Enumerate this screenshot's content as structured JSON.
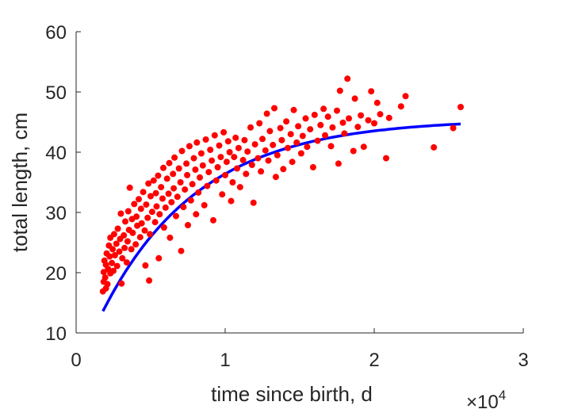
{
  "chart_data": {
    "type": "scatter",
    "xlabel": "time since birth, d",
    "ylabel": "total length, cm",
    "x_multiplier": {
      "base": "×10",
      "exponent": "4"
    },
    "xlim": [
      0,
      30000
    ],
    "ylim": [
      10,
      60
    ],
    "x_ticks": [
      {
        "value": 0,
        "label": "0"
      },
      {
        "value": 10000,
        "label": "1"
      },
      {
        "value": 20000,
        "label": "2"
      },
      {
        "value": 30000,
        "label": "3"
      }
    ],
    "y_ticks": [
      {
        "value": 10,
        "label": "10"
      },
      {
        "value": 20,
        "label": "20"
      },
      {
        "value": 30,
        "label": "30"
      },
      {
        "value": 40,
        "label": "40"
      },
      {
        "value": 50,
        "label": "50"
      },
      {
        "value": 60,
        "label": "60"
      }
    ],
    "grid": false,
    "series": [
      {
        "kind": "points",
        "color": "#ff0000",
        "points": [
          [
            1800,
            16.9
          ],
          [
            1850,
            18.5
          ],
          [
            1850,
            20.1
          ],
          [
            1900,
            22.0
          ],
          [
            1950,
            19.2
          ],
          [
            2000,
            21.3
          ],
          [
            2000,
            17.4
          ],
          [
            2050,
            23.2
          ],
          [
            2100,
            18.1
          ],
          [
            2150,
            20.6
          ],
          [
            2200,
            24.5
          ],
          [
            2250,
            22.7
          ],
          [
            2300,
            19.9
          ],
          [
            2300,
            25.8
          ],
          [
            2400,
            21.6
          ],
          [
            2450,
            23.9
          ],
          [
            2500,
            20.3
          ],
          [
            2550,
            26.4
          ],
          [
            2600,
            22.9
          ],
          [
            2700,
            24.8
          ],
          [
            2750,
            21.1
          ],
          [
            2800,
            27.3
          ],
          [
            2900,
            23.5
          ],
          [
            2950,
            25.6
          ],
          [
            3000,
            29.8
          ],
          [
            3050,
            18.2
          ],
          [
            3100,
            22.4
          ],
          [
            3200,
            26.2
          ],
          [
            3250,
            24.1
          ],
          [
            3300,
            28.5
          ],
          [
            3400,
            21.7
          ],
          [
            3450,
            25.2
          ],
          [
            3500,
            30.2
          ],
          [
            3550,
            27.1
          ],
          [
            3600,
            34.1
          ],
          [
            3700,
            23.9
          ],
          [
            3750,
            28.9
          ],
          [
            3800,
            26.6
          ],
          [
            3900,
            31.4
          ],
          [
            4000,
            24.7
          ],
          [
            4050,
            29.3
          ],
          [
            4100,
            27.8
          ],
          [
            4200,
            32.2
          ],
          [
            4300,
            25.9
          ],
          [
            4350,
            30.6
          ],
          [
            4400,
            28.2
          ],
          [
            4500,
            33.4
          ],
          [
            4600,
            27.0
          ],
          [
            4650,
            21.2
          ],
          [
            4700,
            31.3
          ],
          [
            4800,
            29.1
          ],
          [
            4850,
            34.8
          ],
          [
            4900,
            18.7
          ],
          [
            4950,
            26.4
          ],
          [
            5000,
            32.7
          ],
          [
            5100,
            30.1
          ],
          [
            5200,
            35.3
          ],
          [
            5300,
            28.4
          ],
          [
            5350,
            33.2
          ],
          [
            5400,
            31.0
          ],
          [
            5500,
            36.1
          ],
          [
            5550,
            22.4
          ],
          [
            5600,
            29.7
          ],
          [
            5700,
            34.2
          ],
          [
            5800,
            32.3
          ],
          [
            5850,
            37.4
          ],
          [
            5900,
            27.5
          ],
          [
            6000,
            30.8
          ],
          [
            6100,
            35.6
          ],
          [
            6200,
            33.1
          ],
          [
            6250,
            38.2
          ],
          [
            6300,
            25.8
          ],
          [
            6400,
            31.7
          ],
          [
            6500,
            36.4
          ],
          [
            6550,
            34.0
          ],
          [
            6600,
            39.1
          ],
          [
            6700,
            29.4
          ],
          [
            6800,
            32.6
          ],
          [
            6900,
            37.3
          ],
          [
            7000,
            35.0
          ],
          [
            7050,
            23.6
          ],
          [
            7100,
            40.2
          ],
          [
            7200,
            30.9
          ],
          [
            7300,
            33.8
          ],
          [
            7400,
            38.1
          ],
          [
            7450,
            36.2
          ],
          [
            7500,
            27.9
          ],
          [
            7600,
            41.0
          ],
          [
            7700,
            32.0
          ],
          [
            7800,
            34.7
          ],
          [
            7900,
            39.0
          ],
          [
            8000,
            37.1
          ],
          [
            8050,
            29.7
          ],
          [
            8100,
            41.6
          ],
          [
            8200,
            33.3
          ],
          [
            8300,
            35.8
          ],
          [
            8400,
            39.8
          ],
          [
            8500,
            37.8
          ],
          [
            8600,
            31.2
          ],
          [
            8700,
            42.1
          ],
          [
            8800,
            34.4
          ],
          [
            8900,
            36.7
          ],
          [
            9000,
            40.4
          ],
          [
            9100,
            38.6
          ],
          [
            9200,
            28.7
          ],
          [
            9300,
            42.8
          ],
          [
            9400,
            35.3
          ],
          [
            9500,
            37.5
          ],
          [
            9600,
            41.1
          ],
          [
            9700,
            39.2
          ],
          [
            9800,
            33.0
          ],
          [
            9900,
            43.3
          ],
          [
            10000,
            36.2
          ],
          [
            10100,
            38.4
          ],
          [
            10200,
            41.8
          ],
          [
            10300,
            40.0
          ],
          [
            10400,
            31.9
          ],
          [
            10500,
            35.0
          ],
          [
            10600,
            39.2
          ],
          [
            10700,
            42.4
          ],
          [
            10800,
            37.3
          ],
          [
            10900,
            40.7
          ],
          [
            11000,
            34.2
          ],
          [
            11200,
            38.7
          ],
          [
            11300,
            42.0
          ],
          [
            11400,
            36.4
          ],
          [
            11500,
            40.1
          ],
          [
            11700,
            44.1
          ],
          [
            11800,
            37.9
          ],
          [
            11900,
            31.6
          ],
          [
            12000,
            41.3
          ],
          [
            12200,
            39.0
          ],
          [
            12300,
            44.8
          ],
          [
            12400,
            36.8
          ],
          [
            12500,
            42.2
          ],
          [
            12700,
            40.3
          ],
          [
            12800,
            46.4
          ],
          [
            12900,
            38.6
          ],
          [
            13000,
            43.5
          ],
          [
            13200,
            41.2
          ],
          [
            13300,
            47.3
          ],
          [
            13400,
            35.9
          ],
          [
            13500,
            39.5
          ],
          [
            13700,
            44.0
          ],
          [
            13800,
            42.0
          ],
          [
            13900,
            37.2
          ],
          [
            14100,
            45.1
          ],
          [
            14200,
            40.7
          ],
          [
            14400,
            43.0
          ],
          [
            14500,
            38.4
          ],
          [
            14600,
            47.0
          ],
          [
            14800,
            41.6
          ],
          [
            14900,
            44.3
          ],
          [
            15100,
            39.8
          ],
          [
            15200,
            42.7
          ],
          [
            15400,
            45.6
          ],
          [
            15500,
            40.9
          ],
          [
            15700,
            43.8
          ],
          [
            15900,
            37.5
          ],
          [
            16000,
            46.2
          ],
          [
            16200,
            41.9
          ],
          [
            16400,
            44.5
          ],
          [
            16600,
            47.2
          ],
          [
            16700,
            42.8
          ],
          [
            16900,
            45.9
          ],
          [
            17100,
            41.0
          ],
          [
            17200,
            44.1
          ],
          [
            17500,
            46.9
          ],
          [
            17600,
            38.1
          ],
          [
            17700,
            50.2
          ],
          [
            17900,
            44.9
          ],
          [
            18000,
            43.1
          ],
          [
            18200,
            52.2
          ],
          [
            18300,
            45.6
          ],
          [
            18600,
            40.2
          ],
          [
            18700,
            48.9
          ],
          [
            18900,
            44.2
          ],
          [
            19100,
            46.1
          ],
          [
            19300,
            40.9
          ],
          [
            19600,
            45.3
          ],
          [
            19800,
            50.1
          ],
          [
            20000,
            44.8
          ],
          [
            20200,
            48.2
          ],
          [
            20400,
            46.3
          ],
          [
            20800,
            39.0
          ],
          [
            21000,
            45.7
          ],
          [
            21800,
            47.6
          ],
          [
            22100,
            49.3
          ],
          [
            24000,
            40.8
          ],
          [
            25300,
            44.0
          ],
          [
            25800,
            47.5
          ]
        ]
      },
      {
        "kind": "curve",
        "color": "#0000ff",
        "model": "von Bertalanffy",
        "L_inf": 45.5,
        "L0": 13.6,
        "t0": 1800,
        "rate_per_day": 0.000153,
        "x_range": [
          1800,
          25800
        ]
      }
    ]
  }
}
